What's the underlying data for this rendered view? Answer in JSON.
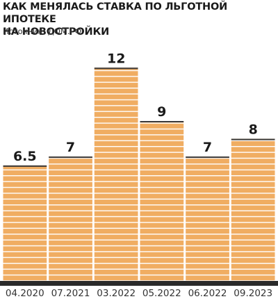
{
  "header": {
    "title_line1": "КАК МЕНЯЛАСЬ СТАВКА ПО ЛЬГОТНОЙ ИПОТЕКЕ",
    "title_line2": "НА НОВОСТРОЙКИ",
    "source": "Источник: ДОМ.РФ"
  },
  "colors": {
    "bar": "#f0ad62",
    "bar_stripe": "#ffffff",
    "bar_edge": "#3a3a3a",
    "baseline": "#2a2a2a",
    "text": "#1a1a1a"
  },
  "chart_data": {
    "type": "bar",
    "categories": [
      "04.2020",
      "07.2021",
      "03.2022",
      "05.2022",
      "06.2022",
      "09.2023"
    ],
    "values": [
      6.5,
      7,
      12,
      9,
      7,
      8
    ],
    "data_labels": [
      "6.5",
      "7",
      "12",
      "9",
      "7",
      "8"
    ],
    "ylim": [
      0,
      12.6
    ],
    "grid": false,
    "legend": "none"
  }
}
